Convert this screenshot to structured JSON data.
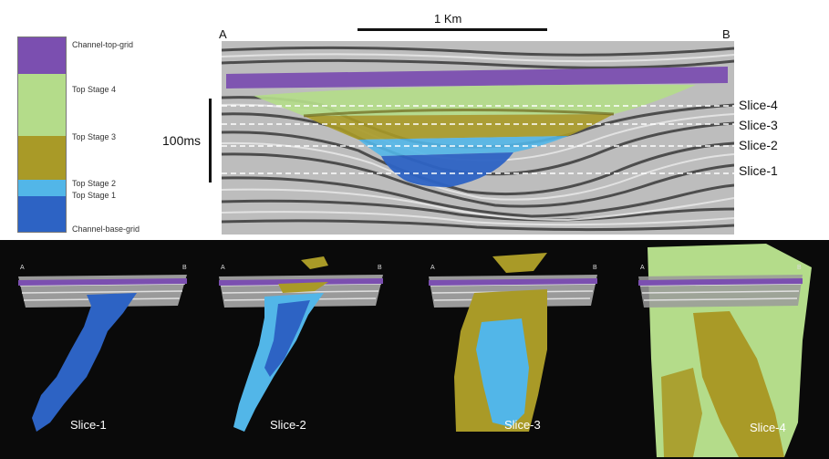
{
  "legend": {
    "items": [
      {
        "label": "Channel-top-grid",
        "color": "#7b4fb0"
      },
      {
        "label": "Top Stage 4",
        "color": "#b4dc8a"
      },
      {
        "label": "Top Stage 3",
        "color": "#a99a27"
      },
      {
        "label": "Top Stage 2",
        "color": "#52b6e8"
      },
      {
        "label": "Top Stage 1",
        "color": "#2d63c4"
      },
      {
        "label": "Channel-base-grid",
        "color": "#2d63c4"
      }
    ]
  },
  "scale": {
    "horizontal": "1 Km",
    "vertical": "100ms"
  },
  "section": {
    "left_end": "A",
    "right_end": "B"
  },
  "slices": [
    "Slice-4",
    "Slice-3",
    "Slice-2",
    "Slice-1"
  ],
  "maps": [
    {
      "label": "Slice-1",
      "a": "A",
      "b": "B"
    },
    {
      "label": "Slice-2",
      "a": "A",
      "b": "B"
    },
    {
      "label": "Slice-3",
      "a": "A",
      "b": "B"
    },
    {
      "label": "Slice-4",
      "a": "A",
      "b": "B"
    }
  ],
  "colors": {
    "purple": "#7b4fb0",
    "light_green": "#b4dc8a",
    "olive": "#a99a27",
    "cyan": "#52b6e8",
    "blue": "#2d63c4",
    "seismic_bg": "#bdbdbd",
    "dark_bg": "#0a0a0a"
  }
}
